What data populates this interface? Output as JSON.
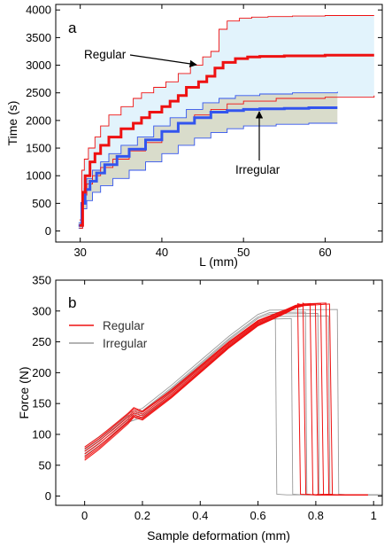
{
  "colors": {
    "regular": "#ee1111",
    "irregular": "#3355ee",
    "band_regular": "#e2f3fc",
    "band_irregular": "#d9dccb",
    "gray": "#9a9a9a"
  },
  "chart_data": [
    {
      "type": "line",
      "panel_label": "a",
      "xlabel": "L (mm)",
      "ylabel": "Time (s)",
      "xlim": [
        27,
        67
      ],
      "ylim": [
        -200,
        4100
      ],
      "xticks": [
        30,
        40,
        50,
        60
      ],
      "yticks": [
        0,
        500,
        1000,
        1500,
        2000,
        2500,
        3000,
        3500,
        4000
      ],
      "grid": false,
      "series": [
        {
          "name": "Regular",
          "role": "mean",
          "x": [
            29.9,
            30.3,
            30.6,
            31.2,
            31.8,
            32.5,
            33.5,
            35.0,
            36.5,
            37.5,
            38.5,
            40.0,
            41.0,
            42.0,
            43.0,
            44.5,
            45.5,
            46.5,
            47.5,
            49.0,
            50.5,
            52.0,
            55.0,
            60.0,
            66.0
          ],
          "y": [
            100,
            700,
            1000,
            1250,
            1400,
            1550,
            1700,
            1850,
            1950,
            2050,
            2150,
            2250,
            2350,
            2450,
            2600,
            2700,
            2800,
            2950,
            3050,
            3120,
            3150,
            3160,
            3170,
            3180,
            3180
          ]
        },
        {
          "name": "Regular",
          "role": "upper-bound",
          "x": [
            29.9,
            30.2,
            30.5,
            31.0,
            31.8,
            32.5,
            33.5,
            35.0,
            36.5,
            37.5,
            39.0,
            40.5,
            42.0,
            43.5,
            45.0,
            46.0,
            47.0,
            48.0,
            49.5,
            51.0,
            53.0,
            56.0,
            60.0,
            66.0
          ],
          "y": [
            200,
            1100,
            1300,
            1500,
            1700,
            1900,
            2100,
            2250,
            2400,
            2500,
            2600,
            2700,
            2850,
            3000,
            3150,
            3250,
            3650,
            3800,
            3850,
            3870,
            3880,
            3890,
            3900,
            3900
          ]
        },
        {
          "name": "Regular",
          "role": "lower-bound",
          "x": [
            29.9,
            30.3,
            30.8,
            31.5,
            32.5,
            34.0,
            36.0,
            38.0,
            40.0,
            42.0,
            44.0,
            46.0,
            48.0,
            50.0,
            54.0,
            60.0,
            66.0
          ],
          "y": [
            50,
            650,
            850,
            1000,
            1150,
            1300,
            1450,
            1600,
            1800,
            1950,
            2100,
            2200,
            2300,
            2350,
            2400,
            2420,
            2450
          ]
        },
        {
          "name": "Irregular",
          "role": "mean",
          "x": [
            29.8,
            30.2,
            30.6,
            31.2,
            32.0,
            33.0,
            34.5,
            36.0,
            38.0,
            40.0,
            42.0,
            44.0,
            46.0,
            48.0,
            50.0,
            52.0,
            55.0,
            58.0,
            61.5
          ],
          "y": [
            100,
            500,
            750,
            900,
            1050,
            1200,
            1350,
            1480,
            1650,
            1800,
            1950,
            2050,
            2150,
            2180,
            2200,
            2210,
            2220,
            2230,
            2230
          ]
        },
        {
          "name": "Irregular",
          "role": "upper-bound",
          "x": [
            29.8,
            30.3,
            30.8,
            31.5,
            32.5,
            33.5,
            35.0,
            37.0,
            39.0,
            41.0,
            43.0,
            45.0,
            47.0,
            49.0,
            52.0,
            56.0,
            61.5
          ],
          "y": [
            150,
            700,
            950,
            1100,
            1250,
            1400,
            1550,
            1700,
            1900,
            2050,
            2200,
            2320,
            2400,
            2450,
            2480,
            2500,
            2520
          ]
        },
        {
          "name": "Irregular",
          "role": "lower-bound",
          "x": [
            29.8,
            30.3,
            30.8,
            31.5,
            32.5,
            34.0,
            36.0,
            38.0,
            40.0,
            42.0,
            44.0,
            46.0,
            48.0,
            50.0,
            54.0,
            58.0,
            61.5
          ],
          "y": [
            50,
            400,
            550,
            700,
            820,
            950,
            1100,
            1250,
            1400,
            1550,
            1680,
            1780,
            1850,
            1900,
            1930,
            1950,
            1950
          ]
        }
      ],
      "annotations": [
        {
          "text": "Regular",
          "arrow_to": [
            45.6,
            3000
          ]
        },
        {
          "text": "Irregular",
          "arrow_to": [
            55.0,
            2150
          ]
        }
      ]
    },
    {
      "type": "line",
      "panel_label": "b",
      "xlabel": "Sample deformation (mm)",
      "ylabel": "Force (N)",
      "xlim": [
        -0.1,
        1.03
      ],
      "ylim": [
        -15,
        350
      ],
      "xticks": [
        0,
        0.2,
        0.4,
        0.6,
        0.8,
        1
      ],
      "yticks": [
        0,
        50,
        100,
        150,
        200,
        250,
        300,
        350
      ],
      "grid": false,
      "legend": "top-left",
      "series": [
        {
          "name": "Regular",
          "role": "representative-curve",
          "x": [
            0.0,
            0.05,
            0.1,
            0.15,
            0.17,
            0.2,
            0.3,
            0.4,
            0.5,
            0.6,
            0.66,
            0.7,
            0.73,
            0.76,
            0.78,
            0.79,
            0.8,
            0.9,
            0.98
          ],
          "y": [
            68,
            85,
            105,
            125,
            135,
            130,
            165,
            205,
            245,
            280,
            292,
            300,
            307,
            310,
            312,
            3,
            2,
            2,
            2
          ]
        },
        {
          "name": "Irregular",
          "role": "representative-curve",
          "x": [
            0.0,
            0.05,
            0.1,
            0.15,
            0.2,
            0.3,
            0.4,
            0.5,
            0.6,
            0.64,
            0.66,
            0.665,
            0.7,
            0.75,
            0.8,
            0.85,
            0.9,
            0.98
          ],
          "y": [
            65,
            82,
            100,
            120,
            128,
            165,
            205,
            245,
            280,
            287,
            288,
            3,
            2,
            2,
            2,
            2,
            2,
            2
          ]
        }
      ]
    }
  ]
}
